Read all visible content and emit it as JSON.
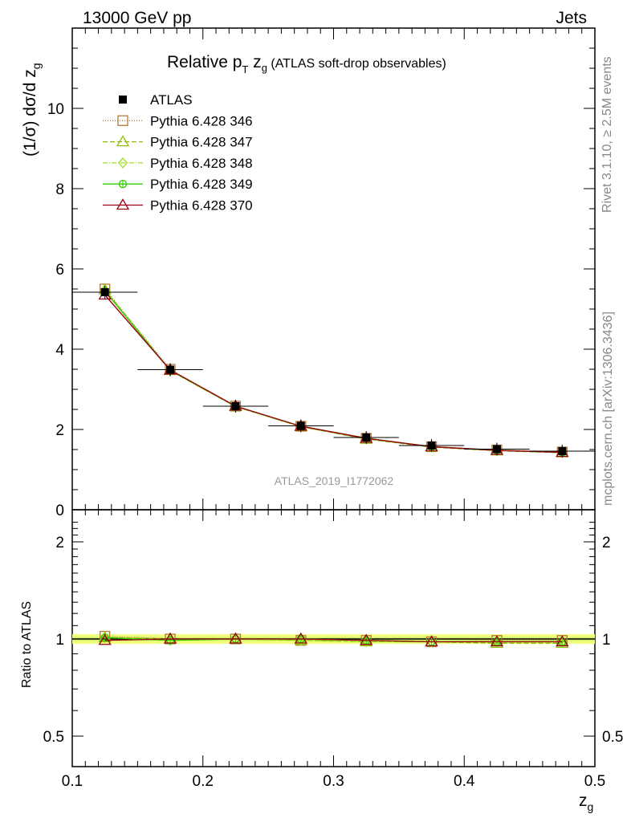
{
  "header": {
    "energy": "13000 GeV pp",
    "category": "Jets"
  },
  "title": {
    "main": "Relative p",
    "sub_T": "T",
    "mid": " z",
    "sub_g": "g",
    "rest": " (ATLAS soft-drop observables)"
  },
  "ylabel": "(1/σ) dσ/d z",
  "ylabel_sub": "g",
  "ratio_ylabel": "Ratio to ATLAS",
  "xlabel": "z",
  "xlabel_sub": "g",
  "watermark": "ATLAS_2019_I1772062",
  "side_text_1": "Rivet 3.1.10, ≥ 2.5M events",
  "side_text_2": "mcplots.cern.ch [arXiv:1306.3436]",
  "colors": {
    "data": "#000000",
    "p346": "#b07a3c",
    "p347": "#8fbf00",
    "p348": "#9ee022",
    "p349": "#33cc00",
    "p370": "#990011",
    "band_outer": "#f2ff80",
    "band_inner": "#ccee66",
    "side_text": "#888888"
  },
  "chart_data": {
    "type": "line",
    "x": [
      0.125,
      0.175,
      0.225,
      0.275,
      0.325,
      0.375,
      0.425,
      0.475
    ],
    "xlim": [
      0.1,
      0.5
    ],
    "ylim_main": [
      0,
      12
    ],
    "ylim_ratio": [
      0.4,
      2.4
    ],
    "x_ticks": [
      "0.1",
      "0.2",
      "0.3",
      "0.4",
      "0.5"
    ],
    "y_ticks_main": [
      "0",
      "2",
      "4",
      "6",
      "8",
      "10"
    ],
    "y_ticks_ratio": [
      "0.5",
      "1",
      "2"
    ],
    "series": [
      {
        "name": "ATLAS",
        "key": "data",
        "marker": "square-filled",
        "values": [
          5.42,
          3.49,
          2.58,
          2.09,
          1.8,
          1.6,
          1.51,
          1.46
        ]
      },
      {
        "name": "Pythia 6.428 346",
        "key": "p346",
        "marker": "square-open",
        "dash": "1,2",
        "values": [
          5.5,
          3.5,
          2.58,
          2.08,
          1.78,
          1.57,
          1.49,
          1.44
        ],
        "ratio": [
          1.02,
          1.0,
          1.0,
          0.99,
          0.99,
          0.98,
          0.99,
          0.99
        ]
      },
      {
        "name": "Pythia 6.428 347",
        "key": "p347",
        "marker": "triangle-open",
        "dash": "6,3",
        "values": [
          5.48,
          3.47,
          2.57,
          2.07,
          1.76,
          1.56,
          1.47,
          1.42
        ],
        "ratio": [
          1.01,
          1.0,
          1.0,
          0.99,
          0.98,
          0.98,
          0.97,
          0.97
        ]
      },
      {
        "name": "Pythia 6.428 348",
        "key": "p348",
        "marker": "diamond-open",
        "dash": "6,2,1,2",
        "values": [
          5.47,
          3.46,
          2.57,
          2.07,
          1.77,
          1.57,
          1.48,
          1.43
        ],
        "ratio": [
          1.01,
          0.99,
          1.0,
          0.99,
          0.98,
          0.98,
          0.98,
          0.98
        ]
      },
      {
        "name": "Pythia 6.428 349",
        "key": "p349",
        "marker": "circle-cross",
        "dash": "",
        "values": [
          5.45,
          3.47,
          2.58,
          2.08,
          1.78,
          1.57,
          1.48,
          1.43
        ],
        "ratio": [
          1.01,
          0.99,
          1.0,
          1.0,
          0.99,
          0.98,
          0.98,
          0.98
        ]
      },
      {
        "name": "Pythia 6.428 370",
        "key": "p370",
        "marker": "triangle-open",
        "dash": "",
        "values": [
          5.35,
          3.48,
          2.58,
          2.08,
          1.78,
          1.57,
          1.48,
          1.43
        ],
        "ratio": [
          0.99,
          1.0,
          1.0,
          1.0,
          0.99,
          0.98,
          0.98,
          0.98
        ]
      }
    ]
  }
}
